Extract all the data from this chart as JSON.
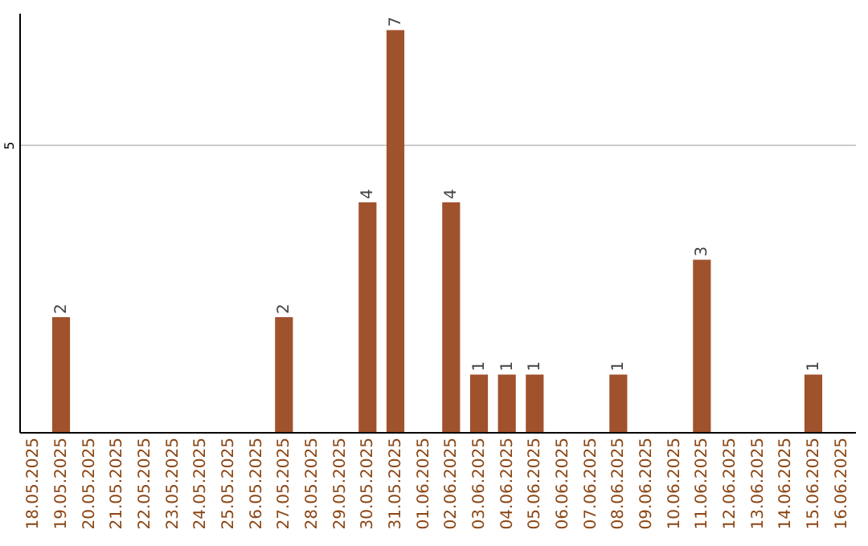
{
  "chart_data": {
    "type": "bar",
    "categories": [
      "18.05.2025",
      "19.05.2025",
      "20.05.2025",
      "21.05.2025",
      "22.05.2025",
      "23.05.2025",
      "24.05.2025",
      "25.05.2025",
      "26.05.2025",
      "27.05.2025",
      "28.05.2025",
      "29.05.2025",
      "30.05.2025",
      "31.05.2025",
      "01.06.2025",
      "02.06.2025",
      "03.06.2025",
      "04.06.2025",
      "05.06.2025",
      "06.06.2025",
      "07.06.2025",
      "08.06.2025",
      "09.06.2025",
      "10.06.2025",
      "11.06.2025",
      "12.06.2025",
      "13.06.2025",
      "14.06.2025",
      "15.06.2025",
      "16.06.2025"
    ],
    "values": [
      0,
      2,
      0,
      0,
      0,
      0,
      0,
      0,
      0,
      2,
      0,
      0,
      4,
      7,
      0,
      4,
      1,
      1,
      1,
      0,
      0,
      1,
      0,
      0,
      3,
      0,
      0,
      0,
      1,
      0
    ],
    "value_labels": [
      null,
      "2",
      null,
      null,
      null,
      null,
      null,
      null,
      null,
      "2",
      null,
      null,
      "4",
      "7",
      null,
      "4",
      "1",
      "1",
      "1",
      null,
      null,
      "1",
      null,
      null,
      "3",
      null,
      null,
      null,
      "1",
      null
    ],
    "color": "#a0522d",
    "ylim": [
      0,
      7.3
    ],
    "yticks": [
      5
    ],
    "grid": "y"
  }
}
